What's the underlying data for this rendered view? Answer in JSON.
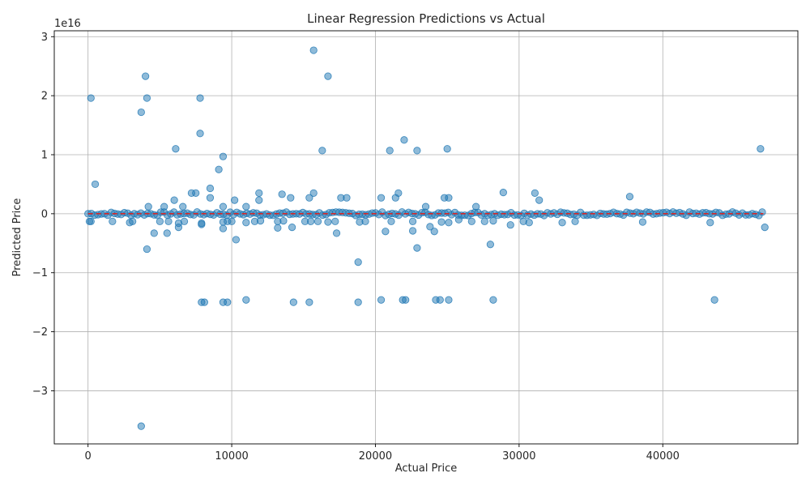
{
  "chart_data": {
    "type": "scatter",
    "title": "Linear Regression Predictions vs Actual",
    "xlabel": "Actual Price",
    "ylabel": "Predicted Price",
    "y_offset_label": "1e16",
    "xlim": [
      -2350,
      49400
    ],
    "ylim": [
      -3.9,
      3.1
    ],
    "xticks": [
      0,
      10000,
      20000,
      30000,
      40000
    ],
    "xtick_labels": [
      "0",
      "10000",
      "20000",
      "30000",
      "40000"
    ],
    "yticks": [
      -3,
      -2,
      -1,
      0,
      1,
      2,
      3
    ],
    "ytick_labels": [
      "−3",
      "−2",
      "−1",
      "0",
      "1",
      "2",
      "3"
    ],
    "grid": true,
    "reference_line": {
      "from": [
        0,
        0
      ],
      "to": [
        47000,
        0
      ],
      "color": "#d62728",
      "style": "dashed"
    },
    "series": [
      {
        "color": "#1f77b4",
        "x_range": [
          0,
          47000
        ],
        "baseline_y": 0,
        "outliers": [
          [
            3700,
            -3.6
          ],
          [
            15700,
            2.77
          ],
          [
            4000,
            2.33
          ],
          [
            16700,
            2.33
          ],
          [
            200,
            1.96
          ],
          [
            4100,
            1.96
          ],
          [
            7800,
            1.96
          ],
          [
            3700,
            1.72
          ],
          [
            7800,
            1.36
          ],
          [
            22000,
            1.25
          ],
          [
            6100,
            1.1
          ],
          [
            16300,
            1.07
          ],
          [
            21000,
            1.07
          ],
          [
            22900,
            1.07
          ],
          [
            25000,
            1.1
          ],
          [
            46800,
            1.1
          ],
          [
            9400,
            0.97
          ],
          [
            9100,
            0.75
          ],
          [
            500,
            0.5
          ],
          [
            8500,
            0.43
          ],
          [
            7500,
            0.35
          ],
          [
            7200,
            0.35
          ],
          [
            11900,
            0.35
          ],
          [
            13500,
            0.33
          ],
          [
            15700,
            0.35
          ],
          [
            21600,
            0.35
          ],
          [
            31100,
            0.35
          ],
          [
            28900,
            0.36
          ],
          [
            37700,
            0.29
          ],
          [
            8500,
            0.27
          ],
          [
            14100,
            0.27
          ],
          [
            15400,
            0.27
          ],
          [
            17600,
            0.27
          ],
          [
            18000,
            0.27
          ],
          [
            20400,
            0.27
          ],
          [
            21400,
            0.27
          ],
          [
            24800,
            0.27
          ],
          [
            25100,
            0.27
          ],
          [
            6000,
            0.23
          ],
          [
            10200,
            0.23
          ],
          [
            11900,
            0.23
          ],
          [
            31400,
            0.23
          ],
          [
            4200,
            0.12
          ],
          [
            5300,
            0.12
          ],
          [
            6600,
            0.12
          ],
          [
            9400,
            0.12
          ],
          [
            11000,
            0.12
          ],
          [
            23500,
            0.12
          ],
          [
            27000,
            0.12
          ],
          [
            100,
            -0.13
          ],
          [
            200,
            -0.13
          ],
          [
            1700,
            -0.13
          ],
          [
            2900,
            -0.15
          ],
          [
            3100,
            -0.13
          ],
          [
            5000,
            -0.13
          ],
          [
            5600,
            -0.13
          ],
          [
            6300,
            -0.16
          ],
          [
            6700,
            -0.13
          ],
          [
            7900,
            -0.16
          ],
          [
            9400,
            -0.14
          ],
          [
            9700,
            -0.13
          ],
          [
            10000,
            -0.13
          ],
          [
            11000,
            -0.15
          ],
          [
            11600,
            -0.13
          ],
          [
            12000,
            -0.12
          ],
          [
            13200,
            -0.13
          ],
          [
            13600,
            -0.12
          ],
          [
            15100,
            -0.13
          ],
          [
            15500,
            -0.13
          ],
          [
            16000,
            -0.13
          ],
          [
            16700,
            -0.14
          ],
          [
            17200,
            -0.13
          ],
          [
            18900,
            -0.14
          ],
          [
            19300,
            -0.13
          ],
          [
            21100,
            -0.13
          ],
          [
            22600,
            -0.13
          ],
          [
            24600,
            -0.14
          ],
          [
            25100,
            -0.15
          ],
          [
            25800,
            -0.1
          ],
          [
            26700,
            -0.13
          ],
          [
            27600,
            -0.13
          ],
          [
            28200,
            -0.12
          ],
          [
            30300,
            -0.13
          ],
          [
            30700,
            -0.15
          ],
          [
            33000,
            -0.15
          ],
          [
            33900,
            -0.13
          ],
          [
            38600,
            -0.14
          ],
          [
            43300,
            -0.15
          ],
          [
            6300,
            -0.23
          ],
          [
            7900,
            -0.18
          ],
          [
            9400,
            -0.25
          ],
          [
            13200,
            -0.24
          ],
          [
            14200,
            -0.23
          ],
          [
            23800,
            -0.22
          ],
          [
            29400,
            -0.19
          ],
          [
            47100,
            -0.23
          ],
          [
            4600,
            -0.33
          ],
          [
            5500,
            -0.33
          ],
          [
            17300,
            -0.33
          ],
          [
            20700,
            -0.3
          ],
          [
            22600,
            -0.29
          ],
          [
            24100,
            -0.3
          ],
          [
            10300,
            -0.44
          ],
          [
            28000,
            -0.52
          ],
          [
            4100,
            -0.6
          ],
          [
            22900,
            -0.58
          ],
          [
            18800,
            -0.82
          ],
          [
            7900,
            -1.5
          ],
          [
            8100,
            -1.5
          ],
          [
            9400,
            -1.5
          ],
          [
            9700,
            -1.5
          ],
          [
            11000,
            -1.46
          ],
          [
            14300,
            -1.5
          ],
          [
            15400,
            -1.5
          ],
          [
            18800,
            -1.5
          ],
          [
            20400,
            -1.46
          ],
          [
            21900,
            -1.46
          ],
          [
            22100,
            -1.46
          ],
          [
            24200,
            -1.46
          ],
          [
            24500,
            -1.46
          ],
          [
            25100,
            -1.46
          ],
          [
            28200,
            -1.46
          ],
          [
            43600,
            -1.46
          ]
        ]
      }
    ]
  }
}
